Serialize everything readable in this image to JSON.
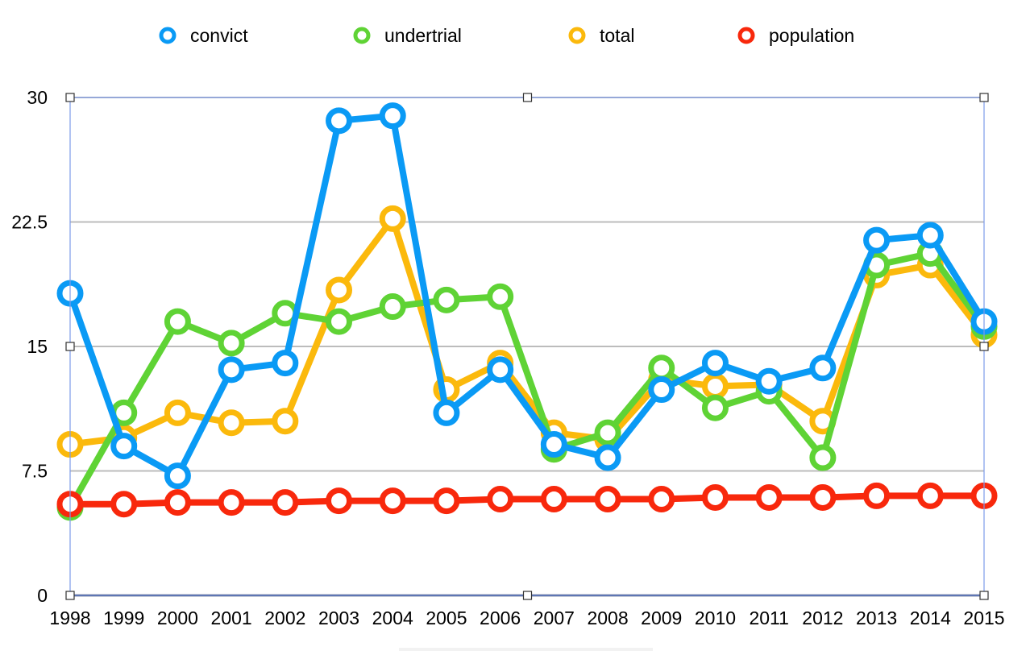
{
  "chart_data": {
    "type": "line",
    "title": "",
    "xlabel": "",
    "ylabel": "",
    "x": [
      "1998",
      "1999",
      "2000",
      "2001",
      "2002",
      "2003",
      "2004",
      "2005",
      "2006",
      "2007",
      "2008",
      "2009",
      "2010",
      "2011",
      "2012",
      "2013",
      "2014",
      "2015"
    ],
    "ylim": [
      0,
      30
    ],
    "yticks": [
      "0",
      "7.5",
      "15",
      "22.5",
      "30"
    ],
    "grid": true,
    "legend_position": "top",
    "series": [
      {
        "name": "convict",
        "color": "#0a9af5",
        "values": [
          18.2,
          9.0,
          7.2,
          13.6,
          14.0,
          28.6,
          28.9,
          11.0,
          13.6,
          9.1,
          8.3,
          12.4,
          14.0,
          12.9,
          13.7,
          21.4,
          21.7,
          16.5
        ]
      },
      {
        "name": "undertrial",
        "color": "#5fd335",
        "values": [
          5.3,
          11.0,
          16.5,
          15.2,
          17.0,
          16.5,
          17.4,
          17.8,
          18.0,
          8.8,
          9.8,
          13.7,
          11.3,
          12.3,
          8.3,
          19.9,
          20.6,
          16.2
        ]
      },
      {
        "name": "total",
        "color": "#fbb90c",
        "values": [
          9.1,
          9.5,
          11.0,
          10.4,
          10.5,
          18.4,
          22.7,
          12.4,
          14.0,
          9.8,
          9.4,
          13.0,
          12.6,
          12.7,
          10.5,
          19.3,
          19.9,
          15.7
        ]
      },
      {
        "name": "population",
        "color": "#f8280c",
        "values": [
          5.5,
          5.5,
          5.6,
          5.6,
          5.6,
          5.7,
          5.7,
          5.7,
          5.8,
          5.8,
          5.8,
          5.8,
          5.9,
          5.9,
          5.9,
          6.0,
          6.0,
          6.0
        ]
      }
    ]
  }
}
